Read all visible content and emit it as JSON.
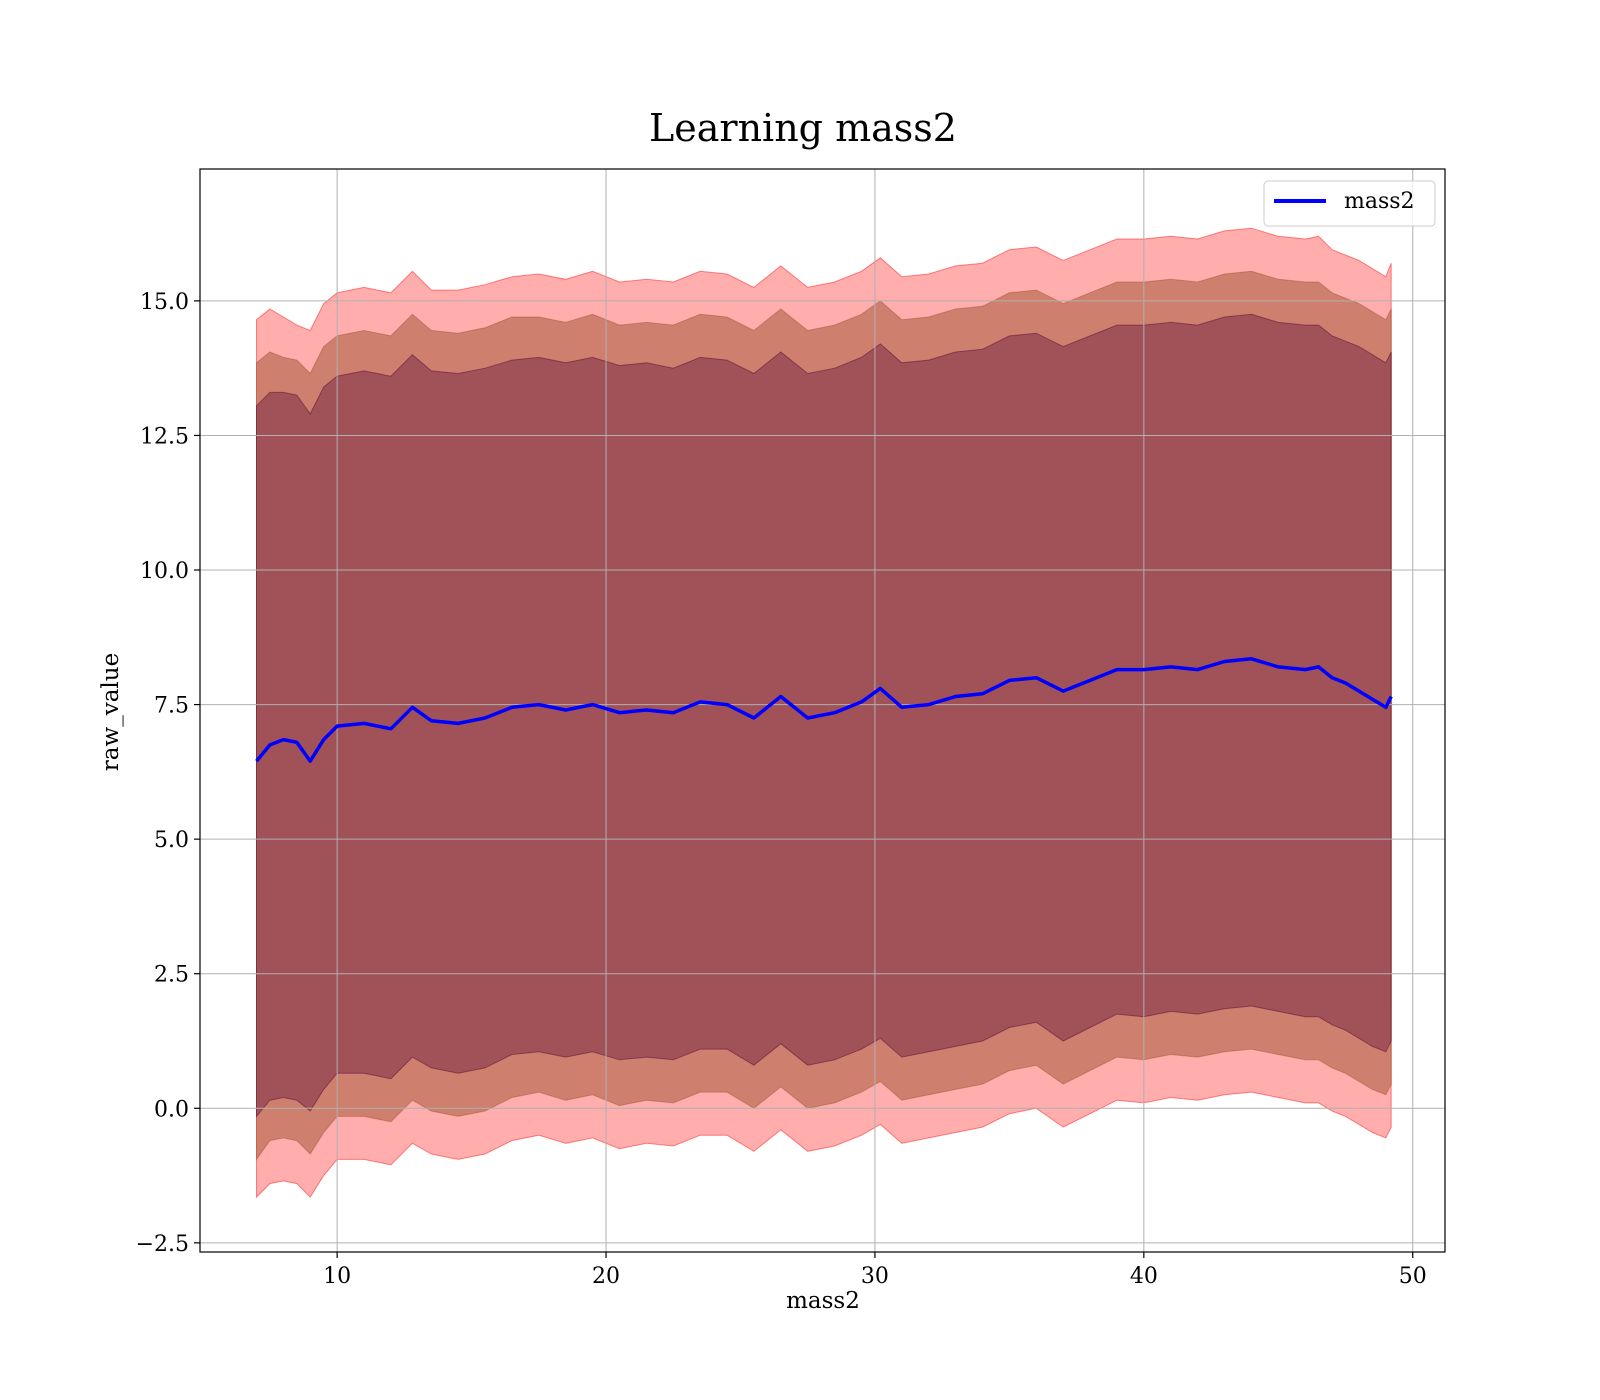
{
  "chart_data": {
    "type": "area",
    "title": "Learning mass2",
    "xlabel": "mass2",
    "ylabel": "raw_value",
    "xlim": [
      4.9,
      51.2
    ],
    "ylim": [
      -2.67,
      17.45
    ],
    "x_ticks": [
      10,
      20,
      30,
      40,
      50
    ],
    "x_tick_labels": [
      "10",
      "20",
      "30",
      "40",
      "50"
    ],
    "y_ticks": [
      -2.5,
      0.0,
      2.5,
      5.0,
      7.5,
      10.0,
      12.5,
      15.0
    ],
    "y_tick_labels": [
      "−2.5",
      "0.0",
      "2.5",
      "5.0",
      "7.5",
      "10.0",
      "12.5",
      "15.0"
    ],
    "grid": true,
    "legend_position": "top-right",
    "colors": {
      "line": "#0000ff",
      "band_outer": "#ff0000",
      "band_middle": "#a0522d",
      "band_inner": "#4b0030",
      "grid": "#b0b0b0"
    },
    "x": [
      7.0,
      7.5,
      8.0,
      8.5,
      9.0,
      9.5,
      10.0,
      11.0,
      12.0,
      12.8,
      13.5,
      14.5,
      15.5,
      16.5,
      17.5,
      18.5,
      19.5,
      20.5,
      21.5,
      22.5,
      23.5,
      24.5,
      25.5,
      26.5,
      27.5,
      28.5,
      29.5,
      30.2,
      31.0,
      32.0,
      33.0,
      34.0,
      35.0,
      36.0,
      37.0,
      38.0,
      39.0,
      40.0,
      41.0,
      42.0,
      43.0,
      44.0,
      45.0,
      46.0,
      46.5,
      47.0,
      47.5,
      48.0,
      48.5,
      49.0,
      49.2
    ],
    "series": [
      {
        "name": "mass2",
        "values": [
          6.45,
          6.75,
          6.85,
          6.8,
          6.45,
          6.85,
          7.1,
          7.15,
          7.05,
          7.45,
          7.2,
          7.15,
          7.25,
          7.45,
          7.5,
          7.4,
          7.5,
          7.35,
          7.4,
          7.35,
          7.55,
          7.5,
          7.25,
          7.65,
          7.25,
          7.35,
          7.55,
          7.8,
          7.45,
          7.5,
          7.65,
          7.7,
          7.95,
          8.0,
          7.75,
          7.95,
          8.15,
          8.15,
          8.2,
          8.15,
          8.3,
          8.35,
          8.2,
          8.15,
          8.2,
          8.0,
          7.9,
          7.75,
          7.6,
          7.45,
          7.65
        ]
      }
    ],
    "bands": [
      {
        "sigma": 3,
        "upper": [
          14.65,
          14.85,
          14.7,
          14.55,
          14.45,
          14.95,
          15.15,
          15.25,
          15.15,
          15.55,
          15.2,
          15.2,
          15.3,
          15.45,
          15.5,
          15.4,
          15.55,
          15.35,
          15.4,
          15.35,
          15.55,
          15.5,
          15.25,
          15.65,
          15.25,
          15.35,
          15.55,
          15.8,
          15.45,
          15.5,
          15.65,
          15.7,
          15.95,
          16.0,
          15.75,
          15.95,
          16.15,
          16.15,
          16.2,
          16.15,
          16.3,
          16.35,
          16.2,
          16.15,
          16.2,
          15.95,
          15.85,
          15.75,
          15.6,
          15.45,
          15.7
        ],
        "lower": [
          -1.65,
          -1.4,
          -1.35,
          -1.4,
          -1.65,
          -1.25,
          -0.95,
          -0.95,
          -1.05,
          -0.65,
          -0.85,
          -0.95,
          -0.85,
          -0.6,
          -0.5,
          -0.65,
          -0.55,
          -0.75,
          -0.65,
          -0.7,
          -0.5,
          -0.5,
          -0.8,
          -0.4,
          -0.8,
          -0.7,
          -0.5,
          -0.3,
          -0.65,
          -0.55,
          -0.45,
          -0.35,
          -0.1,
          0.0,
          -0.35,
          -0.1,
          0.15,
          0.1,
          0.2,
          0.15,
          0.25,
          0.3,
          0.2,
          0.1,
          0.1,
          -0.05,
          -0.15,
          -0.3,
          -0.45,
          -0.55,
          -0.35
        ]
      },
      {
        "sigma": 2,
        "upper": [
          13.85,
          14.05,
          13.95,
          13.9,
          13.65,
          14.15,
          14.35,
          14.45,
          14.35,
          14.75,
          14.45,
          14.4,
          14.5,
          14.7,
          14.7,
          14.6,
          14.75,
          14.55,
          14.6,
          14.55,
          14.75,
          14.7,
          14.45,
          14.85,
          14.45,
          14.55,
          14.75,
          15.0,
          14.65,
          14.7,
          14.85,
          14.9,
          15.15,
          15.2,
          14.95,
          15.15,
          15.35,
          15.35,
          15.4,
          15.35,
          15.5,
          15.55,
          15.4,
          15.35,
          15.35,
          15.15,
          15.05,
          14.95,
          14.8,
          14.65,
          14.85
        ],
        "lower": [
          -0.95,
          -0.6,
          -0.55,
          -0.6,
          -0.85,
          -0.45,
          -0.15,
          -0.15,
          -0.25,
          0.15,
          -0.05,
          -0.15,
          -0.05,
          0.2,
          0.3,
          0.15,
          0.25,
          0.05,
          0.15,
          0.1,
          0.3,
          0.3,
          0.0,
          0.4,
          0.0,
          0.1,
          0.3,
          0.5,
          0.15,
          0.25,
          0.35,
          0.45,
          0.7,
          0.8,
          0.45,
          0.7,
          0.95,
          0.9,
          1.0,
          0.95,
          1.05,
          1.1,
          1.0,
          0.9,
          0.9,
          0.75,
          0.65,
          0.5,
          0.35,
          0.25,
          0.45
        ]
      },
      {
        "sigma": 1,
        "upper": [
          13.05,
          13.3,
          13.3,
          13.25,
          12.9,
          13.4,
          13.6,
          13.7,
          13.6,
          14.0,
          13.7,
          13.65,
          13.75,
          13.9,
          13.95,
          13.85,
          13.95,
          13.8,
          13.85,
          13.75,
          13.95,
          13.9,
          13.65,
          14.05,
          13.65,
          13.75,
          13.95,
          14.2,
          13.85,
          13.9,
          14.05,
          14.1,
          14.35,
          14.4,
          14.15,
          14.35,
          14.55,
          14.55,
          14.6,
          14.55,
          14.7,
          14.75,
          14.6,
          14.55,
          14.55,
          14.35,
          14.25,
          14.15,
          14.0,
          13.85,
          14.05
        ],
        "lower": [
          -0.15,
          0.15,
          0.2,
          0.15,
          -0.05,
          0.35,
          0.65,
          0.65,
          0.55,
          0.95,
          0.75,
          0.65,
          0.75,
          1.0,
          1.05,
          0.95,
          1.05,
          0.9,
          0.95,
          0.9,
          1.1,
          1.1,
          0.8,
          1.2,
          0.8,
          0.9,
          1.1,
          1.3,
          0.95,
          1.05,
          1.15,
          1.25,
          1.5,
          1.6,
          1.25,
          1.5,
          1.75,
          1.7,
          1.8,
          1.75,
          1.85,
          1.9,
          1.8,
          1.7,
          1.7,
          1.55,
          1.45,
          1.3,
          1.15,
          1.05,
          1.25
        ]
      }
    ]
  }
}
